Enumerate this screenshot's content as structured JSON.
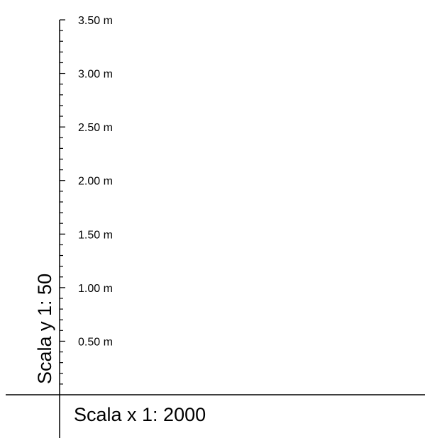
{
  "scale_diagram": {
    "y_scale_label": "Scala y 1:  50",
    "x_scale_label": "Scala x 1:  2000",
    "y_unit": "m",
    "y_range": [
      0,
      3.5
    ],
    "major_step": 0.5,
    "minor_step": 0.1,
    "major_ticks": [
      {
        "value": 0.5,
        "label": "0.50 m"
      },
      {
        "value": 1.0,
        "label": "1.00 m"
      },
      {
        "value": 1.5,
        "label": "1.50 m"
      },
      {
        "value": 2.0,
        "label": "2.00 m"
      },
      {
        "value": 2.5,
        "label": "2.50 m"
      },
      {
        "value": 3.0,
        "label": "3.00 m"
      },
      {
        "value": 3.5,
        "label": "3.50 m"
      }
    ],
    "line_color": "#000000"
  }
}
